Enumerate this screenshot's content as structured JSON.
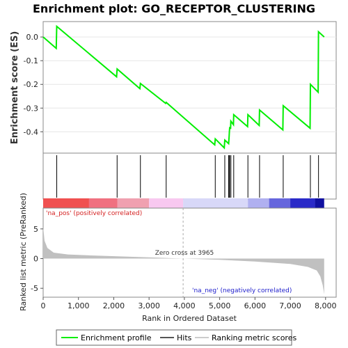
{
  "chart_data": {
    "type": "line",
    "title": "Enrichment plot: GO_RECEPTOR_CLUSTERING",
    "top_panel": {
      "ylabel": "Enrichment score (ES)",
      "ylim": [
        -0.49,
        0.065
      ],
      "yticks": [
        "0.0",
        "-0.1",
        "-0.2",
        "-0.3",
        "-0.4"
      ],
      "ytick_values": [
        0.0,
        -0.1,
        -0.2,
        -0.3,
        -0.4
      ],
      "series_color": "#00ee00",
      "profile": [
        [
          0,
          0.0
        ],
        [
          370,
          -0.048
        ],
        [
          385,
          0.045
        ],
        [
          2080,
          -0.168
        ],
        [
          2095,
          -0.135
        ],
        [
          2740,
          -0.218
        ],
        [
          2755,
          -0.196
        ],
        [
          3470,
          -0.28
        ],
        [
          3485,
          -0.276
        ],
        [
          4860,
          -0.455
        ],
        [
          4875,
          -0.43
        ],
        [
          5130,
          -0.468
        ],
        [
          5145,
          -0.435
        ],
        [
          5255,
          -0.45
        ],
        [
          5268,
          -0.42
        ],
        [
          5275,
          -0.398
        ],
        [
          5283,
          -0.383
        ],
        [
          5310,
          -0.385
        ],
        [
          5318,
          -0.355
        ],
        [
          5390,
          -0.37
        ],
        [
          5398,
          -0.328
        ],
        [
          5790,
          -0.378
        ],
        [
          5800,
          -0.328
        ],
        [
          6120,
          -0.373
        ],
        [
          6130,
          -0.308
        ],
        [
          6790,
          -0.392
        ],
        [
          6800,
          -0.29
        ],
        [
          7560,
          -0.385
        ],
        [
          7570,
          -0.2
        ],
        [
          7790,
          -0.233
        ],
        [
          7800,
          0.022
        ],
        [
          7960,
          0.0
        ]
      ]
    },
    "hits_panel": {
      "hit_ranks": [
        385,
        2095,
        2755,
        3485,
        4875,
        5145,
        5255,
        5275,
        5283,
        5318,
        5398,
        5800,
        6130,
        6800,
        7570,
        7800
      ]
    },
    "bottom_panel": {
      "ylabel": "Ranked list metric (PreRanked)",
      "xlabel": "Rank in Ordered Dataset",
      "xlim": [
        0,
        8300
      ],
      "xticks": [
        "0",
        "1,000",
        "2,000",
        "3,000",
        "4,000",
        "5,000",
        "6,000",
        "7,000",
        "8,000"
      ],
      "xtick_values": [
        0,
        1000,
        2000,
        3000,
        4000,
        5000,
        6000,
        7000,
        8000
      ],
      "ylim": [
        -6.5,
        8.5
      ],
      "yticks": [
        "5",
        "0",
        "-5"
      ],
      "ytick_values": [
        5,
        0,
        -5
      ],
      "n_genes": 7960,
      "zero_cross": 3965,
      "zero_cross_label": "Zero cross at 3965",
      "pos_label": "'na_pos' (positively correlated)",
      "neg_label": "'na_neg' (negatively correlated)",
      "metric_profile": [
        [
          0,
          5.3
        ],
        [
          40,
          3.0
        ],
        [
          120,
          1.8
        ],
        [
          300,
          1.0
        ],
        [
          700,
          0.7
        ],
        [
          1500,
          0.5
        ],
        [
          3000,
          0.2
        ],
        [
          3965,
          0.0
        ],
        [
          5000,
          -0.2
        ],
        [
          6000,
          -0.5
        ],
        [
          7000,
          -0.9
        ],
        [
          7500,
          -1.4
        ],
        [
          7750,
          -2.0
        ],
        [
          7850,
          -3.0
        ],
        [
          7920,
          -4.5
        ],
        [
          7960,
          -6.0
        ]
      ]
    },
    "legend": {
      "placement": "bottom",
      "entries": [
        "Enrichment profile",
        "Hits",
        "Ranking metric scores"
      ]
    }
  },
  "colors": {
    "profile": "#00ee00",
    "hits": "#000000",
    "metric_fill": "#c0c0c0",
    "zero_line": "#aaaaaa",
    "pos_text": "#d42020",
    "neg_text": "#2020cc",
    "heat_stops": [
      "#f05050",
      "#f07080",
      "#f0a0b0",
      "#f8c8f0",
      "#d8d8f8",
      "#b0b0f0",
      "#6666dd",
      "#2a2ac8",
      "#1010a0"
    ]
  }
}
